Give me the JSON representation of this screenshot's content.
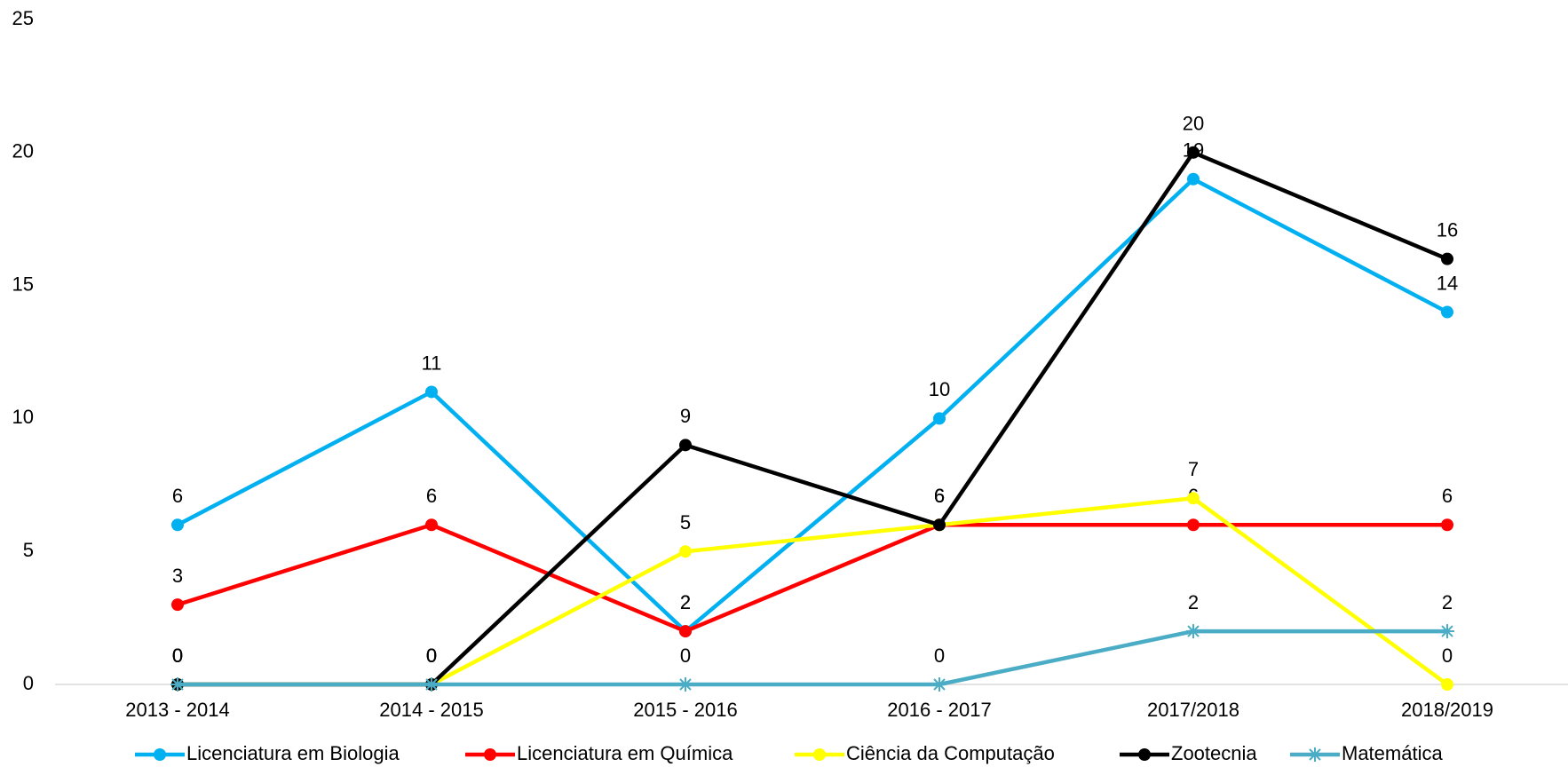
{
  "chart_data": {
    "type": "line",
    "categories": [
      "2013 - 2014",
      "2014 - 2015",
      "2015 - 2016",
      "2016 - 2017",
      "2017/2018",
      "2018/2019"
    ],
    "series": [
      {
        "name": "Licenciatura em Biologia",
        "color": "#00b0f0",
        "marker": "circle",
        "values": [
          6,
          11,
          2,
          10,
          19,
          14
        ]
      },
      {
        "name": "Licenciatura em Química",
        "color": "#ff0000",
        "marker": "circle",
        "values": [
          3,
          6,
          2,
          6,
          6,
          6
        ]
      },
      {
        "name": "Ciência da Computação",
        "color": "#ffff00",
        "marker": "circle",
        "values": [
          0,
          0,
          5,
          6,
          7,
          0
        ]
      },
      {
        "name": "Zootecnia",
        "color": "#000000",
        "marker": "circle",
        "values": [
          0,
          0,
          9,
          6,
          20,
          16
        ]
      },
      {
        "name": "Matemática",
        "color": "#4bacc6",
        "marker": "asterisk",
        "values": [
          0,
          0,
          0,
          0,
          2,
          2
        ]
      }
    ],
    "ylim": [
      0,
      25
    ],
    "yticks": [
      0,
      5,
      10,
      15,
      20,
      25
    ],
    "grid": false,
    "legend": "bottom"
  }
}
